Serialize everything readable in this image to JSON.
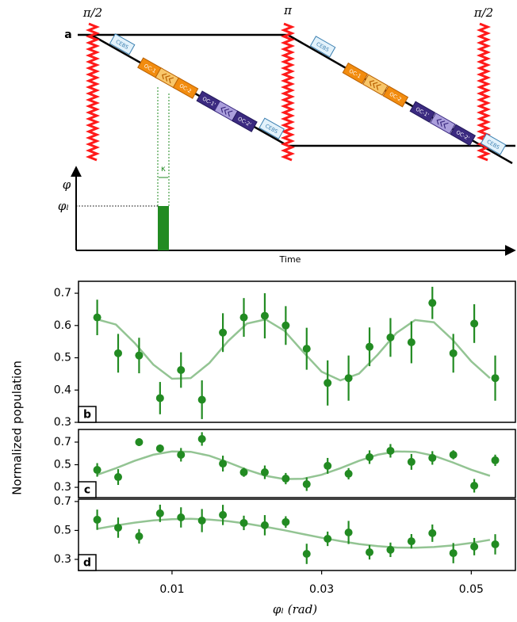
{
  "diagram": {
    "label": "a",
    "pulses": [
      "π/2",
      "π",
      "π/2"
    ],
    "left_boxes": [
      "CEBS",
      "OC-1",
      "OC-2",
      "OC-1'",
      "OC-2'",
      "CEBS"
    ],
    "right_boxes": [
      "CEBS",
      "OC-1",
      "OC-2",
      "OC-1'",
      "OC-2'",
      "CEBS"
    ],
    "phase_axis": "φ",
    "phase_level": "φₗ",
    "kappa": "κ",
    "time_axis": "Time"
  },
  "chart_data": [
    {
      "type": "scatter",
      "label": "b",
      "color": "#228b22",
      "fit_color": "#93c493",
      "x": [
        0,
        0.0028,
        0.0056,
        0.0084,
        0.0112,
        0.014,
        0.0168,
        0.0196,
        0.0224,
        0.0252,
        0.028,
        0.0308,
        0.0336,
        0.0364,
        0.0392,
        0.042,
        0.0448,
        0.0476,
        0.0504,
        0.0532
      ],
      "values": [
        0.625,
        0.514,
        0.507,
        0.375,
        0.462,
        0.37,
        0.578,
        0.625,
        0.63,
        0.6,
        0.528,
        0.422,
        0.437,
        0.534,
        0.563,
        0.548,
        0.67,
        0.514,
        0.606,
        0.437
      ],
      "errors": [
        0.055,
        0.06,
        0.055,
        0.05,
        0.055,
        0.06,
        0.06,
        0.06,
        0.07,
        0.06,
        0.065,
        0.07,
        0.07,
        0.06,
        0.06,
        0.065,
        0.05,
        0.06,
        0.06,
        0.07
      ],
      "fit_x": [
        0,
        0.0025,
        0.005,
        0.0075,
        0.01,
        0.0125,
        0.015,
        0.0175,
        0.02,
        0.0225,
        0.025,
        0.0275,
        0.03,
        0.0325,
        0.035,
        0.0375,
        0.04,
        0.0425,
        0.045,
        0.0475,
        0.05,
        0.0525
      ],
      "fit_values": [
        0.619,
        0.603,
        0.546,
        0.479,
        0.435,
        0.437,
        0.484,
        0.552,
        0.606,
        0.619,
        0.584,
        0.519,
        0.457,
        0.43,
        0.451,
        0.51,
        0.577,
        0.617,
        0.61,
        0.556,
        0.489,
        0.437
      ],
      "xlim": [
        -0.0025,
        0.0559
      ],
      "ylim": [
        0.3,
        0.737
      ],
      "yticks": [
        0.3,
        0.4,
        0.5,
        0.6,
        0.7
      ]
    },
    {
      "type": "scatter",
      "label": "c",
      "color": "#228b22",
      "fit_color": "#93c493",
      "ylabel": "Normalized population",
      "x": [
        0,
        0.0028,
        0.0056,
        0.0084,
        0.0112,
        0.014,
        0.0168,
        0.0196,
        0.0224,
        0.0252,
        0.028,
        0.0308,
        0.0336,
        0.0364,
        0.0392,
        0.042,
        0.0448,
        0.0476,
        0.0504,
        0.0532
      ],
      "values": [
        0.454,
        0.391,
        0.7,
        0.644,
        0.588,
        0.728,
        0.51,
        0.433,
        0.433,
        0.377,
        0.328,
        0.49,
        0.42,
        0.567,
        0.623,
        0.525,
        0.56,
        0.588,
        0.314,
        0.539
      ],
      "errors": [
        0.06,
        0.07,
        0.035,
        0.035,
        0.06,
        0.06,
        0.07,
        0.04,
        0.06,
        0.05,
        0.06,
        0.07,
        0.05,
        0.06,
        0.06,
        0.07,
        0.06,
        0.04,
        0.06,
        0.05
      ],
      "fit_x": [
        0,
        0.0025,
        0.005,
        0.0075,
        0.01,
        0.0125,
        0.015,
        0.0175,
        0.02,
        0.0225,
        0.025,
        0.0275,
        0.03,
        0.0325,
        0.035,
        0.0375,
        0.04,
        0.0425,
        0.045,
        0.0475,
        0.05,
        0.0525
      ],
      "fit_values": [
        0.411,
        0.469,
        0.534,
        0.588,
        0.617,
        0.614,
        0.579,
        0.521,
        0.456,
        0.402,
        0.373,
        0.376,
        0.411,
        0.469,
        0.534,
        0.588,
        0.617,
        0.614,
        0.579,
        0.521,
        0.456,
        0.402
      ],
      "xlim": [
        -0.0025,
        0.0559
      ],
      "ylim": [
        0.209,
        0.812
      ],
      "yticks": [
        0.3,
        0.5,
        0.7
      ]
    },
    {
      "type": "scatter",
      "label": "d",
      "color": "#228b22",
      "fit_color": "#93c493",
      "xlabel": "φₗ (rad)",
      "x": [
        0,
        0.0028,
        0.0056,
        0.0084,
        0.0112,
        0.014,
        0.0168,
        0.0196,
        0.0224,
        0.0252,
        0.028,
        0.0308,
        0.0336,
        0.0364,
        0.0392,
        0.042,
        0.0448,
        0.0476,
        0.0504,
        0.0532
      ],
      "values": [
        0.574,
        0.519,
        0.459,
        0.618,
        0.59,
        0.568,
        0.607,
        0.552,
        0.536,
        0.558,
        0.338,
        0.442,
        0.486,
        0.349,
        0.366,
        0.425,
        0.481,
        0.343,
        0.388,
        0.404
      ],
      "errors": [
        0.07,
        0.07,
        0.05,
        0.06,
        0.07,
        0.08,
        0.07,
        0.05,
        0.07,
        0.04,
        0.07,
        0.05,
        0.08,
        0.05,
        0.05,
        0.05,
        0.06,
        0.07,
        0.06,
        0.07
      ],
      "fit_x": [
        0,
        0.0025,
        0.005,
        0.0075,
        0.01,
        0.0125,
        0.015,
        0.0175,
        0.02,
        0.0225,
        0.025,
        0.0275,
        0.03,
        0.0325,
        0.035,
        0.0375,
        0.04,
        0.0425,
        0.045,
        0.0475,
        0.05,
        0.0525
      ],
      "fit_values": [
        0.511,
        0.534,
        0.554,
        0.569,
        0.578,
        0.58,
        0.575,
        0.564,
        0.547,
        0.525,
        0.501,
        0.475,
        0.449,
        0.426,
        0.406,
        0.391,
        0.382,
        0.38,
        0.385,
        0.396,
        0.413,
        0.435
      ],
      "xlim": [
        -0.0025,
        0.0559
      ],
      "ylim": [
        0.223,
        0.716
      ],
      "yticks": [
        0.3,
        0.5,
        0.7
      ],
      "xticks": [
        0.01,
        0.03,
        0.05
      ]
    }
  ]
}
